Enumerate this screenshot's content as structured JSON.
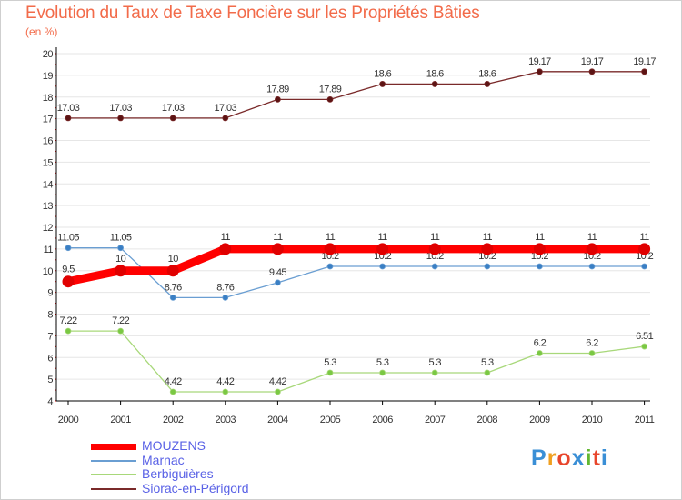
{
  "header": {
    "title": "Evolution du Taux de Taxe Foncière sur les Propriétés Bâties",
    "unit": "(en %)"
  },
  "logo": {
    "text": "Proxiti",
    "colors": [
      "#3a8fd6",
      "#f0a020",
      "#e8452b",
      "#3a8fd6",
      "#62b832",
      "#e8452b",
      "#3a8fd6"
    ]
  },
  "colors": {
    "title": "#f26b4a",
    "axis": "#000000",
    "grid": "#e6e6e6",
    "axis_tick": "#e00000",
    "legend_text": "#5a62e6"
  },
  "chart_data": {
    "type": "line",
    "title": "Evolution du Taux de Taxe Foncière sur les Propriétés Bâties",
    "ylabel": "(en %)",
    "xlabel": "",
    "ylim": [
      4,
      20
    ],
    "yticks": [
      4,
      5,
      6,
      7,
      8,
      9,
      10,
      11,
      12,
      13,
      14,
      15,
      16,
      17,
      18,
      19,
      20
    ],
    "categories": [
      "2000",
      "2001",
      "2002",
      "2003",
      "2004",
      "2005",
      "2006",
      "2007",
      "2008",
      "2009",
      "2010",
      "2011"
    ],
    "series": [
      {
        "name": "Siorac-en-Périgord",
        "color": "#7a2a2a",
        "dot": "#5c1414",
        "values": [
          17.03,
          17.03,
          17.03,
          17.03,
          17.89,
          17.89,
          18.6,
          18.6,
          18.6,
          19.17,
          19.17,
          19.17
        ],
        "labels": [
          "17.03",
          "17.03",
          "17.03",
          "17.03",
          "17.89",
          "17.89",
          "18.6",
          "18.6",
          "18.6",
          "19.17",
          "19.17",
          "19.17"
        ]
      },
      {
        "name": "Marnac",
        "color": "#6a9ed2",
        "dot": "#3a7fc4",
        "values": [
          11.05,
          11.05,
          8.76,
          8.76,
          9.45,
          10.2,
          10.2,
          10.2,
          10.2,
          10.2,
          10.2,
          10.2
        ],
        "labels": [
          "11.05",
          "11.05",
          "8.76",
          "8.76",
          "9.45",
          "10.2",
          "10.2",
          "10.2",
          "10.2",
          "10.2",
          "10.2",
          "10.2"
        ]
      },
      {
        "name": "Berbiguières",
        "color": "#a8d87a",
        "dot": "#7ac843",
        "values": [
          7.22,
          7.22,
          4.42,
          4.42,
          4.42,
          5.3,
          5.3,
          5.3,
          5.3,
          6.2,
          6.2,
          6.51
        ],
        "labels": [
          "7.22",
          "7.22",
          "4.42",
          "4.42",
          "4.42",
          "5.3",
          "5.3",
          "5.3",
          "5.3",
          "6.2",
          "6.2",
          "6.51"
        ]
      },
      {
        "name": "MOUZENS",
        "color": "#ff0000",
        "dot": "#e00000",
        "values": [
          9.5,
          10,
          10,
          11,
          11,
          11,
          11,
          11,
          11,
          11,
          11,
          11
        ],
        "labels": [
          "9.5",
          "10",
          "10",
          "11",
          "11",
          "11",
          "11",
          "11",
          "11",
          "11",
          "11",
          "11"
        ]
      }
    ],
    "legend": [
      "MOUZENS",
      "Marnac",
      "Berbiguières",
      "Siorac-en-Périgord"
    ],
    "legend_position": "bottom-left"
  }
}
